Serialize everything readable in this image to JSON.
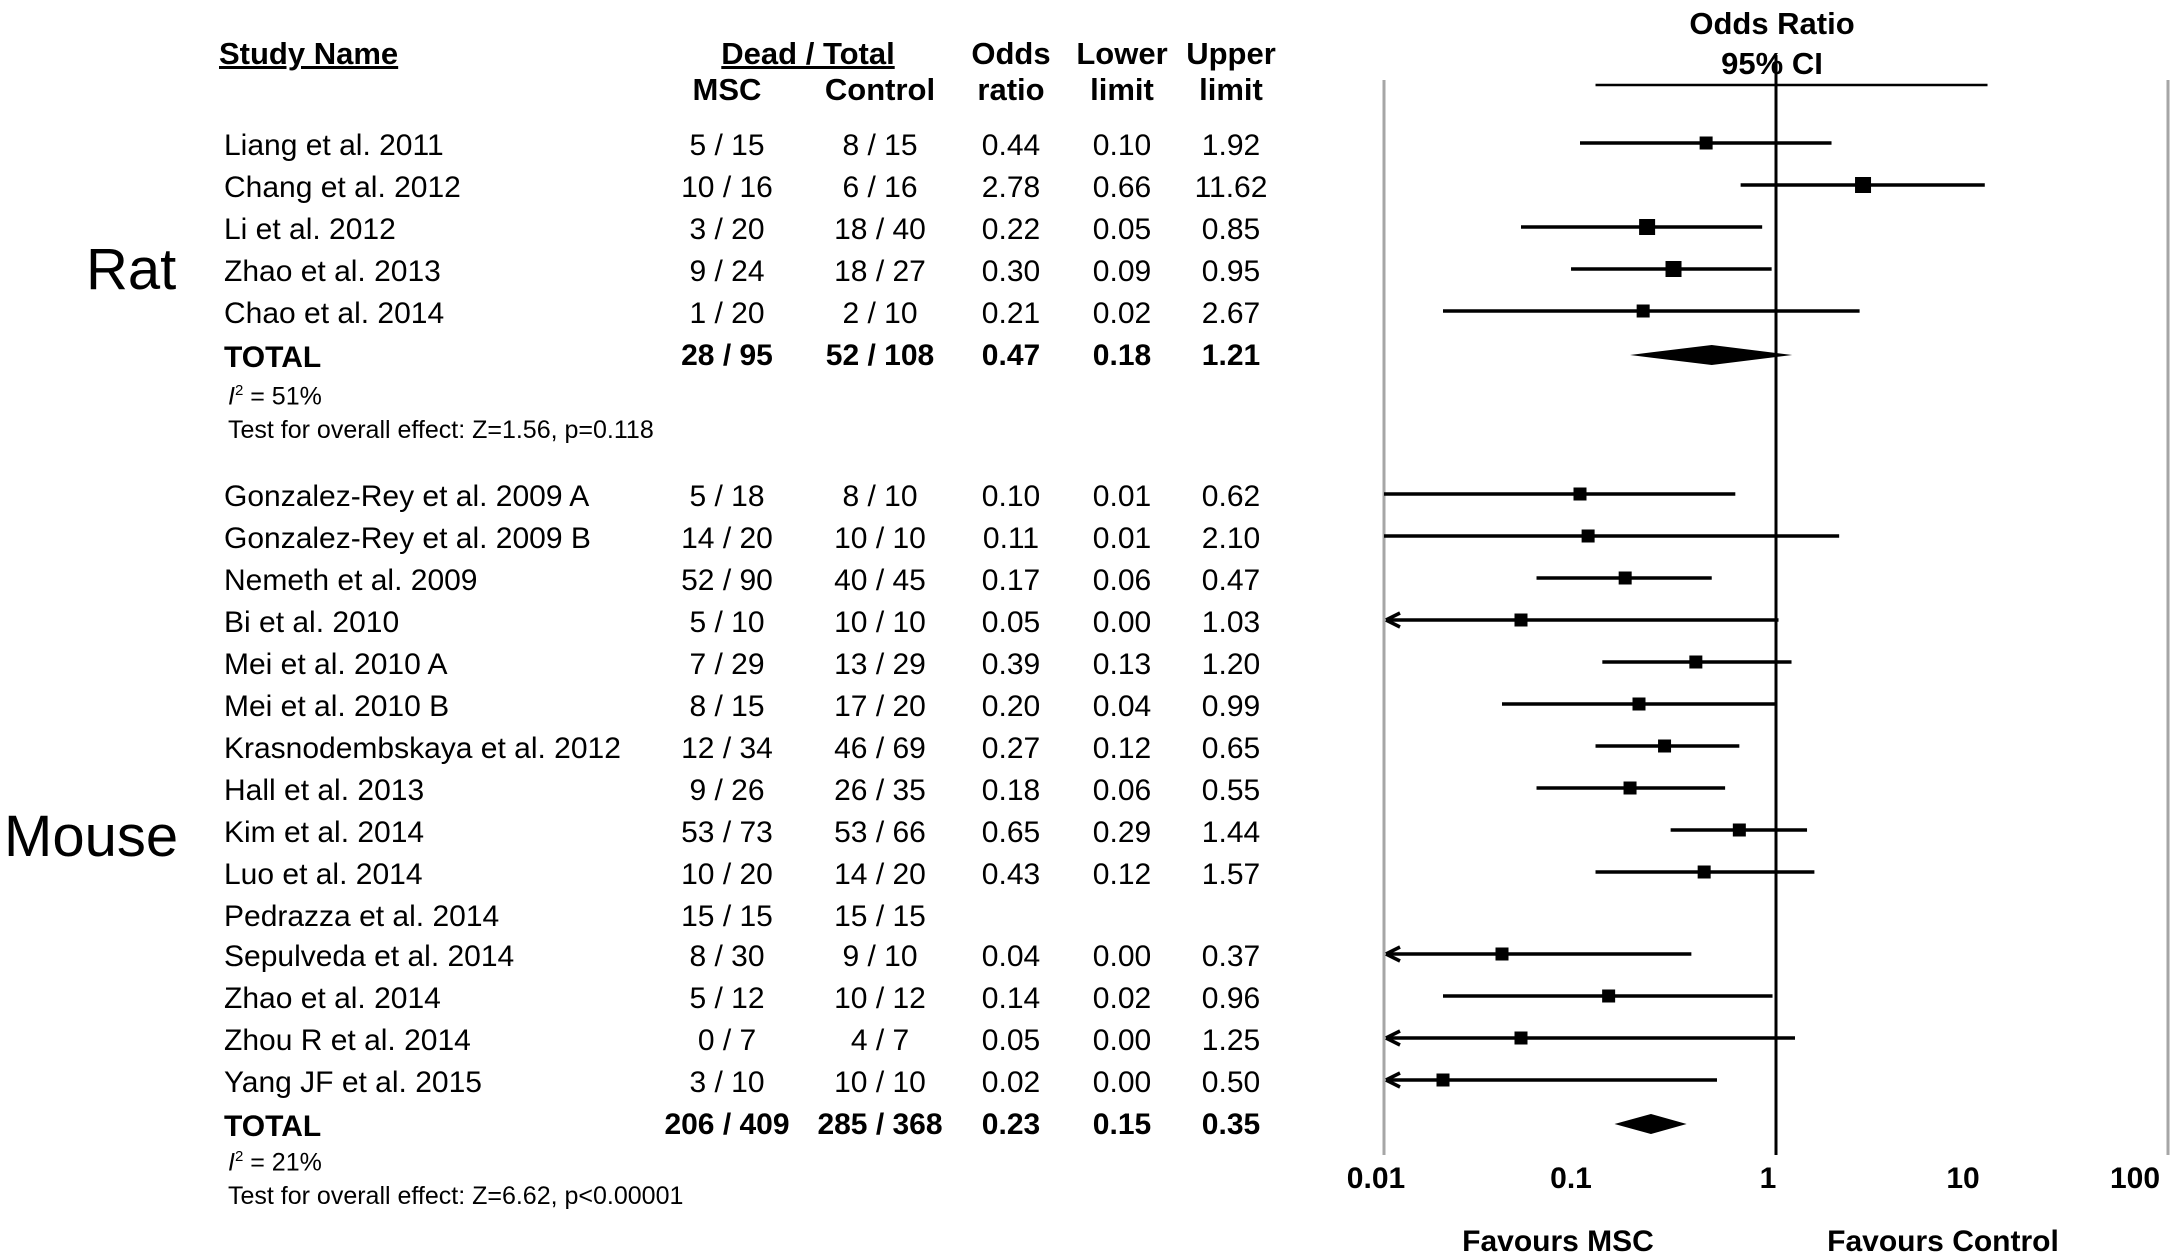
{
  "chart_data": {
    "type": "forest",
    "title": "Odds Ratio",
    "subtitle": "95% CI",
    "x_scale": "log",
    "xlim": [
      0.01,
      100
    ],
    "x_ticks": [
      "0.01",
      "0.1",
      "1",
      "10",
      "100"
    ],
    "x_tick_values": [
      0.01,
      0.1,
      1,
      10,
      100
    ],
    "favours_left": "Favours MSC",
    "favours_right": "Favours Control",
    "headers": {
      "study": "Study Name",
      "dead_total": "Dead / Total",
      "msc": "MSC",
      "control": "Control",
      "odds": "Odds",
      "ratio": "ratio",
      "lower": "Lower",
      "upper": "Upper",
      "limit": "limit"
    },
    "groups": [
      {
        "name": "Rat",
        "studies": [
          {
            "study": "Liang et al. 2011",
            "msc": "5 / 15",
            "control": "8 / 15",
            "or": "0.44",
            "lower": "0.10",
            "upper": "1.92"
          },
          {
            "study": "Chang et al. 2012",
            "msc": "10 / 16",
            "control": "6 / 16",
            "or": "2.78",
            "lower": "0.66",
            "upper": "11.62"
          },
          {
            "study": "Li et al. 2012",
            "msc": "3 / 20",
            "control": "18 / 40",
            "or": "0.22",
            "lower": "0.05",
            "upper": "0.85"
          },
          {
            "study": "Zhao et al. 2013",
            "msc": "9 / 24",
            "control": "18 / 27",
            "or": "0.30",
            "lower": "0.09",
            "upper": "0.95"
          },
          {
            "study": "Chao et al. 2014",
            "msc": "1 / 20",
            "control": "2 / 10",
            "or": "0.21",
            "lower": "0.02",
            "upper": "2.67"
          }
        ],
        "total": {
          "label": "TOTAL",
          "msc": "28 / 95",
          "control": "52 / 108",
          "or": "0.47",
          "lower": "0.18",
          "upper": "1.21"
        },
        "i2_label": "I",
        "i2_sup": "2",
        "i2_value": " = 51%",
        "test": "Test for overall effect: Z=1.56, p=0.118"
      },
      {
        "name": "Mouse",
        "studies": [
          {
            "study": "Gonzalez-Rey et al. 2009 A",
            "msc": "5 / 18",
            "control": "8 / 10",
            "or": "0.10",
            "lower": "0.01",
            "upper": "0.62"
          },
          {
            "study": "Gonzalez-Rey et al. 2009 B",
            "msc": "14 / 20",
            "control": "10 / 10",
            "or": "0.11",
            "lower": "0.01",
            "upper": "2.10"
          },
          {
            "study": "Nemeth et al. 2009",
            "msc": "52 / 90",
            "control": "40 / 45",
            "or": "0.17",
            "lower": "0.06",
            "upper": "0.47"
          },
          {
            "study": "Bi et al. 2010",
            "msc": "5 / 10",
            "control": "10 / 10",
            "or": "0.05",
            "lower": "0.00",
            "upper": "1.03"
          },
          {
            "study": "Mei et al. 2010 A",
            "msc": "7 / 29",
            "control": "13 / 29",
            "or": "0.39",
            "lower": "0.13",
            "upper": "1.20"
          },
          {
            "study": "Mei et al. 2010 B",
            "msc": "8 / 15",
            "control": "17 / 20",
            "or": "0.20",
            "lower": "0.04",
            "upper": "0.99"
          },
          {
            "study": "Krasnodembskaya et al. 2012",
            "msc": "12 / 34",
            "control": "46 / 69",
            "or": "0.27",
            "lower": "0.12",
            "upper": "0.65"
          },
          {
            "study": "Hall et al. 2013",
            "msc": "9 / 26",
            "control": "26 / 35",
            "or": "0.18",
            "lower": "0.06",
            "upper": "0.55"
          },
          {
            "study": "Kim et al. 2014",
            "msc": "53 / 73",
            "control": "53 / 66",
            "or": "0.65",
            "lower": "0.29",
            "upper": "1.44"
          },
          {
            "study": "Luo et al. 2014",
            "msc": "10 / 20",
            "control": "14 / 20",
            "or": "0.43",
            "lower": "0.12",
            "upper": "1.57"
          },
          {
            "study": "Pedrazza et al. 2014",
            "msc": "15 / 15",
            "control": "15 / 15",
            "or": "",
            "lower": "",
            "upper": ""
          },
          {
            "study": "Sepulveda et al. 2014",
            "msc": "8 / 30",
            "control": "9 / 10",
            "or": "0.04",
            "lower": "0.00",
            "upper": "0.37"
          },
          {
            "study": "Zhao et al. 2014",
            "msc": "5 / 12",
            "control": "10 / 12",
            "or": "0.14",
            "lower": "0.02",
            "upper": "0.96"
          },
          {
            "study": "Zhou R et al. 2014",
            "msc": "0 / 7",
            "control": "4 / 7",
            "or": "0.05",
            "lower": "0.00",
            "upper": "1.25"
          },
          {
            "study": "Yang JF et al. 2015",
            "msc": "3 / 10",
            "control": "10 / 10",
            "or": "0.02",
            "lower": "0.00",
            "upper": "0.50"
          }
        ],
        "total": {
          "label": "TOTAL",
          "msc": "206 / 409",
          "control": "285 / 368",
          "or": "0.23",
          "lower": "0.15",
          "upper": "0.35"
        },
        "i2_label": "I",
        "i2_sup": "2",
        "i2_value": " = 21%",
        "test": "Test for overall effect: Z=6.62, p<0.00001"
      }
    ]
  }
}
